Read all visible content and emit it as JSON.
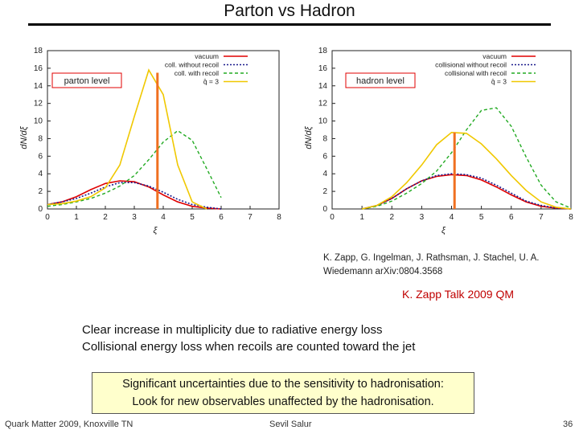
{
  "slide": {
    "title": "Parton vs Hadron",
    "citation": "K. Zapp, G. Ingelman, J. Rathsman, J. Stachel, U. A. Wiedemann arXiv:0804.3568",
    "talk_ref": "K. Zapp Talk 2009 QM",
    "bullets": [
      "Clear increase in multiplicity due to radiative energy loss",
      "Collisional energy loss when recoils are counted toward the jet"
    ],
    "callout": [
      "Significant uncertainties due to the sensitivity to hadronisation:",
      "Look for new observables unaffected by the hadronisation."
    ],
    "footer": {
      "left": "Quark Matter 2009, Knoxville TN",
      "center": "Sevil Salur",
      "page": "36"
    }
  },
  "colors": {
    "vacuum": "#e00000",
    "coll_no_recoil": "#1a1a8c",
    "coll_recoil": "#22aa22",
    "qhat": "#f0c800",
    "marker": "#f07020"
  },
  "chart_data": [
    {
      "type": "line",
      "title": "",
      "xlabel": "ξ",
      "ylabel": "dN/dξ",
      "xlim": [
        0,
        8
      ],
      "ylim": [
        0,
        18
      ],
      "xticks": [
        "0",
        "1",
        "2",
        "3",
        "4",
        "5",
        "6",
        "7",
        "8"
      ],
      "yticks": [
        "0",
        "2",
        "4",
        "6",
        "8",
        "10",
        "12",
        "14",
        "16",
        "18"
      ],
      "label_box": "parton level",
      "legend_position": "top-right",
      "legend": [
        "vacuum",
        "coll. without recoil",
        "coll. with recoil",
        "q̂ = 3"
      ],
      "marker_x": 3.8,
      "series": [
        {
          "name": "vacuum",
          "x": [
            0,
            0.5,
            1,
            1.5,
            2,
            2.5,
            3,
            3.5,
            4,
            4.5,
            5,
            5.5,
            6
          ],
          "y": [
            0.5,
            0.8,
            1.4,
            2.2,
            2.9,
            3.2,
            3.1,
            2.5,
            1.6,
            0.8,
            0.3,
            0.1,
            0
          ]
        },
        {
          "name": "coll. without recoil",
          "x": [
            0,
            0.5,
            1,
            1.5,
            2,
            2.5,
            3,
            3.5,
            4,
            4.5,
            5,
            5.5,
            6
          ],
          "y": [
            0.5,
            0.8,
            1.2,
            1.8,
            2.5,
            3.0,
            3.0,
            2.6,
            1.9,
            1.1,
            0.5,
            0.2,
            0
          ]
        },
        {
          "name": "coll. with recoil",
          "x": [
            0,
            0.5,
            1,
            1.5,
            2,
            2.5,
            3,
            3.5,
            4,
            4.5,
            5,
            5.5,
            6
          ],
          "y": [
            0.3,
            0.5,
            0.8,
            1.2,
            1.8,
            2.6,
            3.8,
            5.6,
            7.6,
            8.9,
            7.8,
            4.6,
            1.3
          ]
        },
        {
          "name": "q̂ = 3",
          "x": [
            0,
            0.5,
            1,
            1.5,
            2,
            2.5,
            3,
            3.5,
            4,
            4.5,
            5,
            5.5
          ],
          "y": [
            0.5,
            0.6,
            0.9,
            1.4,
            2.4,
            5.0,
            10.5,
            15.8,
            13.0,
            5.0,
            0.8,
            0
          ]
        }
      ]
    },
    {
      "type": "line",
      "title": "",
      "xlabel": "ξ",
      "ylabel": "dN/dξ",
      "xlim": [
        0,
        8
      ],
      "ylim": [
        0,
        18
      ],
      "xticks": [
        "0",
        "1",
        "2",
        "3",
        "4",
        "5",
        "6",
        "7",
        "8"
      ],
      "yticks": [
        "0",
        "2",
        "4",
        "6",
        "8",
        "10",
        "12",
        "14",
        "16",
        "18"
      ],
      "label_box": "hadron level",
      "legend_position": "top-right",
      "legend": [
        "vacuum",
        "collisional without recoil",
        "collisional with recoil",
        "q̂ = 3"
      ],
      "marker_x": 4.1,
      "series": [
        {
          "name": "vacuum",
          "x": [
            1,
            1.5,
            2,
            2.5,
            3,
            3.5,
            4,
            4.5,
            5,
            5.5,
            6,
            6.5,
            7,
            7.5,
            8
          ],
          "y": [
            0,
            0.4,
            1.2,
            2.3,
            3.2,
            3.7,
            3.9,
            3.8,
            3.3,
            2.5,
            1.6,
            0.8,
            0.3,
            0.1,
            0
          ]
        },
        {
          "name": "collisional without recoil",
          "x": [
            1,
            1.5,
            2,
            2.5,
            3,
            3.5,
            4,
            4.5,
            5,
            5.5,
            6,
            6.5,
            7,
            7.5,
            8
          ],
          "y": [
            0,
            0.4,
            1.2,
            2.3,
            3.2,
            3.8,
            4.0,
            3.9,
            3.5,
            2.7,
            1.8,
            0.9,
            0.4,
            0.1,
            0
          ]
        },
        {
          "name": "collisional with recoil",
          "x": [
            1,
            1.5,
            2,
            2.5,
            3,
            3.5,
            4,
            4.5,
            5,
            5.5,
            6,
            6.5,
            7,
            7.5,
            8
          ],
          "y": [
            0,
            0.3,
            0.9,
            1.8,
            2.9,
            4.3,
            6.4,
            9.0,
            11.2,
            11.5,
            9.4,
            5.9,
            2.7,
            0.8,
            0.1
          ]
        },
        {
          "name": "q̂ = 3",
          "x": [
            1,
            1.5,
            2,
            2.5,
            3,
            3.5,
            4,
            4.5,
            5,
            5.5,
            6,
            6.5,
            7,
            7.5,
            8
          ],
          "y": [
            0,
            0.4,
            1.4,
            3.0,
            5.0,
            7.3,
            8.7,
            8.6,
            7.4,
            5.7,
            3.8,
            2.1,
            0.8,
            0.2,
            0
          ]
        }
      ]
    }
  ]
}
